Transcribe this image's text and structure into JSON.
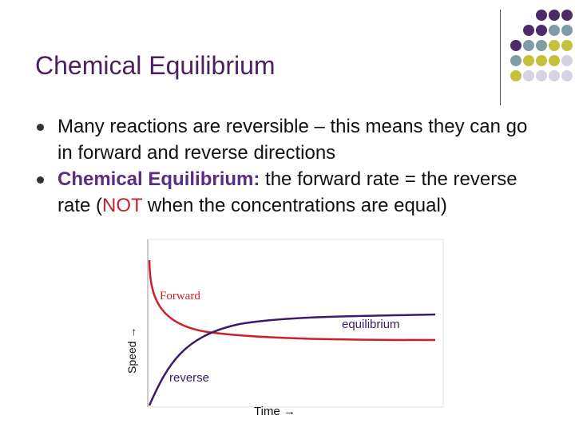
{
  "slide": {
    "title": "Chemical Equilibrium",
    "bullets": [
      {
        "text": "Many reactions are reversible – this means they can go in forward and reverse directions"
      },
      {
        "term": "Chemical Equilibrium:",
        "text_before": " the forward rate = the reverse rate (",
        "emphasis": "NOT",
        "text_after": " when the concentrations are equal)"
      }
    ]
  },
  "chart_data": {
    "type": "line",
    "xlabel": "Time →",
    "ylabel": "Speed →",
    "series": [
      {
        "name": "Forward",
        "color": "#cc2026"
      },
      {
        "name": "reverse",
        "color": "#3a1a6b"
      }
    ],
    "annotations": [
      {
        "text": "equilibrium"
      }
    ]
  },
  "colors": {
    "title": "#4b2160",
    "term": "#5a2c86",
    "emphasis": "#c0262d",
    "dot_purple": "#4b2c66",
    "dot_teal": "#7f9ea3",
    "dot_yellow": "#c4c23a",
    "dot_lavender": "#d5d3e3"
  }
}
